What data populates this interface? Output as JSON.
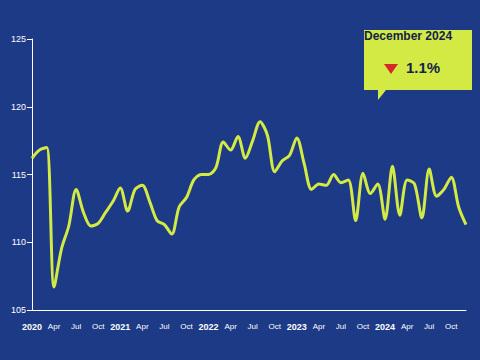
{
  "chart_data": {
    "type": "line",
    "color": "#d2ea43",
    "categories": [
      "2020",
      null,
      null,
      "Apr",
      null,
      null,
      "Jul",
      null,
      null,
      "Oct",
      null,
      null,
      "2021",
      null,
      null,
      "Apr",
      null,
      null,
      "Jul",
      null,
      null,
      "Oct",
      null,
      null,
      "2022",
      null,
      null,
      "Apr",
      null,
      null,
      "Jul",
      null,
      null,
      "Oct",
      null,
      null,
      "2023",
      null,
      null,
      "Apr",
      null,
      null,
      "Jul",
      null,
      null,
      "Oct",
      null,
      null,
      "2024",
      null,
      null,
      "Apr",
      null,
      null,
      "Jul",
      null,
      null,
      "Oct",
      null,
      null
    ],
    "values": [
      116.2,
      116.8,
      117.0,
      106.7,
      109.5,
      111.2,
      113.9,
      112.2,
      111.2,
      111.4,
      112.2,
      113.0,
      114.0,
      112.3,
      113.9,
      114.2,
      113.0,
      111.6,
      111.3,
      110.6,
      112.6,
      113.3,
      114.6,
      115.0,
      115.0,
      115.5,
      117.4,
      116.8,
      117.8,
      116.2,
      117.5,
      118.9,
      117.9,
      115.2,
      116.0,
      116.4,
      117.7,
      115.8,
      113.9,
      114.3,
      114.2,
      115.0,
      114.4,
      114.6,
      111.6,
      115.1,
      113.6,
      114.3,
      111.7,
      115.6,
      112.0,
      114.6,
      114.3,
      111.8,
      115.4,
      113.4,
      113.9,
      114.8,
      112.6,
      111.3
    ],
    "ylim": [
      105,
      125
    ],
    "yticks": [
      105,
      110,
      115,
      120,
      125
    ],
    "grid": false,
    "annotation": {
      "title": "December 2024",
      "value": "1.1%"
    }
  }
}
